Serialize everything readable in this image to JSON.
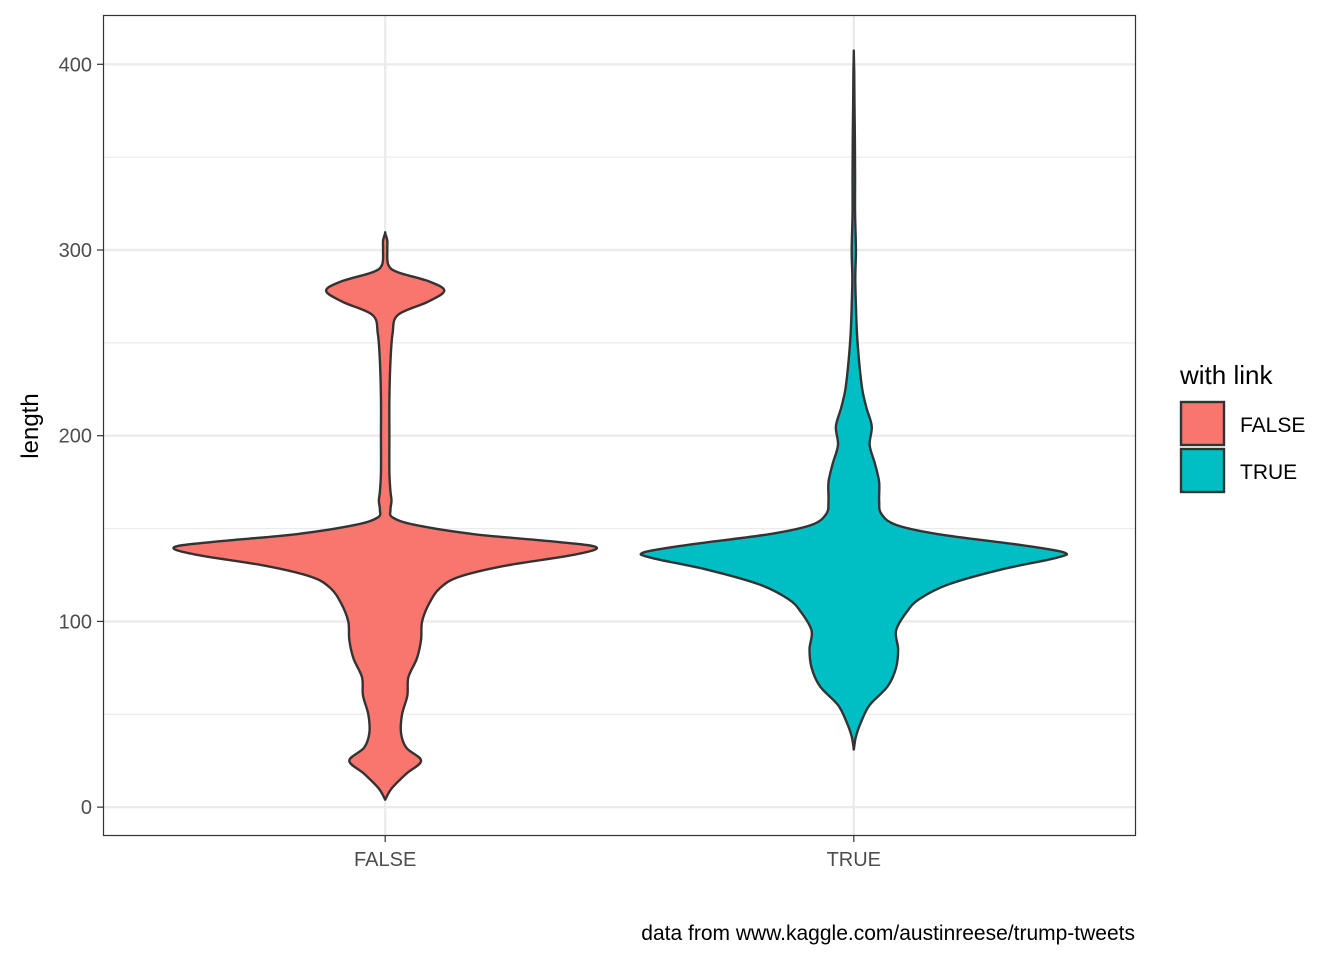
{
  "chart_data": {
    "type": "violin",
    "title": "",
    "xlabel": "",
    "ylabel": "length",
    "caption": "data from www.kaggle.com/austinreese/trump-tweets",
    "categories": [
      "FALSE",
      "TRUE"
    ],
    "ylim": [
      -15,
      426
    ],
    "y_breaks": [
      0,
      100,
      200,
      300,
      400
    ],
    "y_tick_labels": [
      "0",
      "100",
      "200",
      "300",
      "400"
    ],
    "grid": true,
    "legend": {
      "title": "with link",
      "position": "right",
      "items": [
        {
          "label": "FALSE",
          "color": "#F8766D"
        },
        {
          "label": "TRUE",
          "color": "#00BFC4"
        }
      ]
    },
    "series": [
      {
        "name": "FALSE",
        "color": "#F8766D",
        "y_min": 4,
        "y_max": 309,
        "density_profile": [
          [
            4,
            0.0
          ],
          [
            10,
            0.03
          ],
          [
            18,
            0.1
          ],
          [
            25,
            0.17
          ],
          [
            32,
            0.1
          ],
          [
            40,
            0.075
          ],
          [
            50,
            0.08
          ],
          [
            60,
            0.105
          ],
          [
            70,
            0.11
          ],
          [
            80,
            0.15
          ],
          [
            90,
            0.17
          ],
          [
            100,
            0.175
          ],
          [
            110,
            0.21
          ],
          [
            118,
            0.26
          ],
          [
            124,
            0.35
          ],
          [
            130,
            0.57
          ],
          [
            136,
            0.9
          ],
          [
            140,
            1.0
          ],
          [
            143,
            0.8
          ],
          [
            147,
            0.42
          ],
          [
            152,
            0.14
          ],
          [
            156,
            0.035
          ],
          [
            160,
            0.025
          ],
          [
            165,
            0.03
          ],
          [
            170,
            0.025
          ],
          [
            180,
            0.02
          ],
          [
            200,
            0.02
          ],
          [
            220,
            0.02
          ],
          [
            240,
            0.025
          ],
          [
            255,
            0.035
          ],
          [
            265,
            0.06
          ],
          [
            272,
            0.2
          ],
          [
            278,
            0.28
          ],
          [
            283,
            0.21
          ],
          [
            288,
            0.06
          ],
          [
            292,
            0.015
          ],
          [
            300,
            0.01
          ],
          [
            305,
            0.01
          ],
          [
            309,
            0.0
          ]
        ]
      },
      {
        "name": "TRUE",
        "color": "#00BFC4",
        "y_min": 31,
        "y_max": 406,
        "density_profile": [
          [
            31,
            0.0
          ],
          [
            38,
            0.01
          ],
          [
            46,
            0.035
          ],
          [
            55,
            0.075
          ],
          [
            65,
            0.16
          ],
          [
            75,
            0.2
          ],
          [
            85,
            0.21
          ],
          [
            95,
            0.2
          ],
          [
            105,
            0.25
          ],
          [
            112,
            0.31
          ],
          [
            120,
            0.45
          ],
          [
            128,
            0.7
          ],
          [
            134,
            0.95
          ],
          [
            137,
            1.0
          ],
          [
            141,
            0.8
          ],
          [
            147,
            0.4
          ],
          [
            152,
            0.2
          ],
          [
            158,
            0.13
          ],
          [
            165,
            0.12
          ],
          [
            175,
            0.12
          ],
          [
            185,
            0.1
          ],
          [
            195,
            0.075
          ],
          [
            205,
            0.085
          ],
          [
            215,
            0.06
          ],
          [
            225,
            0.04
          ],
          [
            240,
            0.025
          ],
          [
            255,
            0.015
          ],
          [
            270,
            0.01
          ],
          [
            285,
            0.007
          ],
          [
            300,
            0.01
          ],
          [
            320,
            0.006
          ],
          [
            340,
            0.006
          ],
          [
            360,
            0.005
          ],
          [
            380,
            0.003
          ],
          [
            395,
            0.002
          ],
          [
            406,
            0.0
          ]
        ]
      }
    ]
  }
}
